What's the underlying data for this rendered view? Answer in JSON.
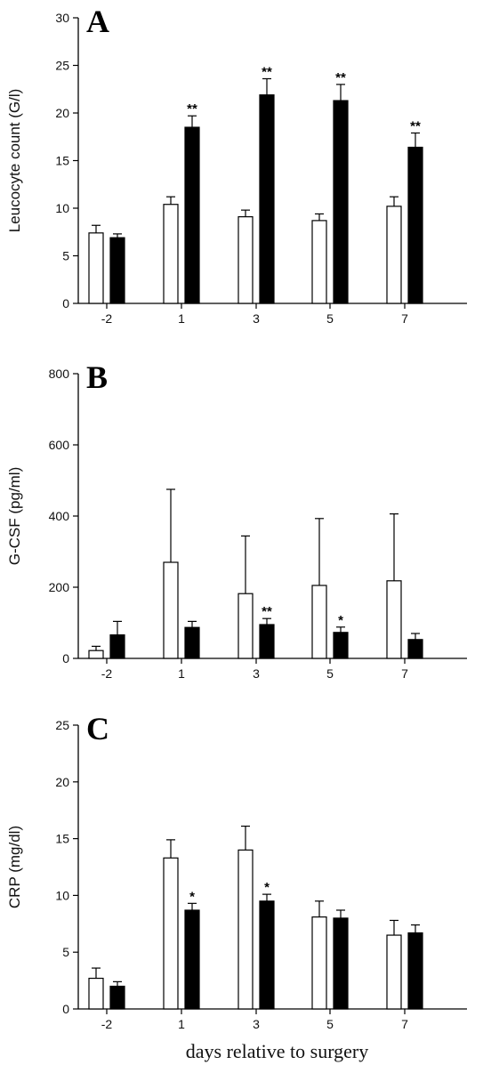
{
  "chart_data": [
    {
      "panel": "A",
      "type": "bar",
      "ylabel": "Leucocyte count (G/l)",
      "ylim": [
        0,
        30
      ],
      "yticks": [
        0,
        5,
        10,
        15,
        20,
        25,
        30
      ],
      "categories": [
        "-2",
        "1",
        "3",
        "5",
        "7"
      ],
      "series": [
        {
          "fill": "white",
          "values": [
            7.4,
            10.4,
            9.1,
            8.7,
            10.2
          ],
          "err": [
            0.8,
            0.8,
            0.7,
            0.7,
            1.0
          ],
          "stars": [
            "",
            "",
            "",
            "",
            ""
          ]
        },
        {
          "fill": "black",
          "values": [
            6.9,
            18.5,
            21.9,
            21.3,
            16.4
          ],
          "err": [
            0.4,
            1.2,
            1.7,
            1.7,
            1.5
          ],
          "stars": [
            "",
            "**",
            "**",
            "**",
            "**"
          ]
        }
      ]
    },
    {
      "panel": "B",
      "type": "bar",
      "ylabel": "G-CSF (pg/ml)",
      "ylim": [
        0,
        800
      ],
      "yticks": [
        0,
        200,
        400,
        600,
        800
      ],
      "categories": [
        "-2",
        "1",
        "3",
        "5",
        "7"
      ],
      "series": [
        {
          "fill": "white",
          "values": [
            22,
            270,
            182,
            205,
            218
          ],
          "err": [
            12,
            205,
            162,
            188,
            188
          ],
          "stars": [
            "",
            "",
            "",
            "",
            ""
          ]
        },
        {
          "fill": "black",
          "values": [
            66,
            87,
            95,
            73,
            53
          ],
          "err": [
            38,
            17,
            17,
            15,
            17
          ],
          "stars": [
            "",
            "",
            "**",
            "*",
            ""
          ]
        }
      ]
    },
    {
      "panel": "C",
      "type": "bar",
      "ylabel": "CRP (mg/dl)",
      "xlabel": "days relative to surgery",
      "ylim": [
        0,
        25
      ],
      "yticks": [
        0,
        5,
        10,
        15,
        20,
        25
      ],
      "categories": [
        "-2",
        "1",
        "3",
        "5",
        "7"
      ],
      "series": [
        {
          "fill": "white",
          "values": [
            2.7,
            13.3,
            14.0,
            8.1,
            6.5
          ],
          "err": [
            0.9,
            1.6,
            2.1,
            1.4,
            1.3
          ],
          "stars": [
            "",
            "",
            "",
            "",
            ""
          ]
        },
        {
          "fill": "black",
          "values": [
            2.0,
            8.7,
            9.5,
            8.0,
            6.7
          ],
          "err": [
            0.4,
            0.6,
            0.6,
            0.7,
            0.7
          ],
          "stars": [
            "",
            "*",
            "*",
            "",
            ""
          ]
        }
      ]
    }
  ]
}
